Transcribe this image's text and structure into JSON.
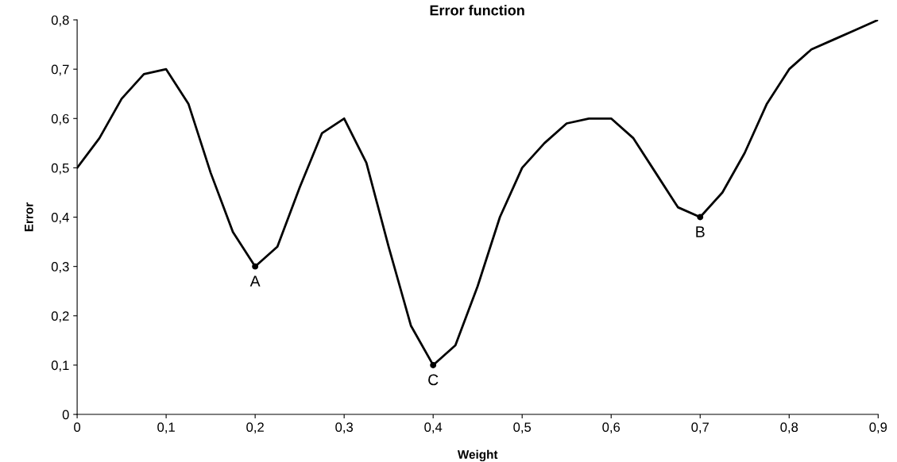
{
  "chart_data": {
    "type": "line",
    "title": "Error function",
    "xlabel": "Weight",
    "ylabel": "Error",
    "x": [
      0,
      0.025,
      0.05,
      0.075,
      0.1,
      0.125,
      0.15,
      0.175,
      0.2,
      0.225,
      0.25,
      0.275,
      0.3,
      0.325,
      0.35,
      0.375,
      0.4,
      0.425,
      0.45,
      0.475,
      0.5,
      0.525,
      0.55,
      0.575,
      0.6,
      0.625,
      0.65,
      0.675,
      0.7,
      0.725,
      0.75,
      0.775,
      0.8,
      0.825,
      0.85,
      0.875,
      0.9
    ],
    "series": [
      {
        "color": "#000000",
        "values": [
          0.5,
          0.56,
          0.64,
          0.69,
          0.7,
          0.63,
          0.49,
          0.37,
          0.3,
          0.34,
          0.46,
          0.57,
          0.6,
          0.51,
          0.34,
          0.18,
          0.1,
          0.14,
          0.26,
          0.4,
          0.5,
          0.55,
          0.59,
          0.6,
          0.6,
          0.56,
          0.49,
          0.42,
          0.4,
          0.45,
          0.53,
          0.63,
          0.7,
          0.74,
          0.76,
          0.78,
          0.8
        ]
      },
      {
        "type": "scatter",
        "color": "#000000",
        "x": [
          0.2,
          0.4,
          0.7
        ],
        "values": [
          0.3,
          0.1,
          0.4
        ],
        "marker": "circle"
      }
    ],
    "annotations": [
      {
        "text": "A",
        "x": 0.2,
        "y": 0.3
      },
      {
        "text": "C",
        "x": 0.4,
        "y": 0.1
      },
      {
        "text": "B",
        "x": 0.7,
        "y": 0.4
      }
    ],
    "xlim": [
      0,
      0.9
    ],
    "xticks": [
      0,
      {
        "value": 0.1,
        "label": "0,1"
      },
      {
        "value": 0.2,
        "label": "0,2"
      },
      {
        "value": 0.3,
        "label": "0,3"
      },
      {
        "value": 0.4,
        "label": "0,4"
      },
      {
        "value": 0.5,
        "label": "0,5"
      },
      {
        "value": 0.6,
        "label": "0,6"
      },
      {
        "value": 0.7,
        "label": "0,7"
      },
      {
        "value": 0.8,
        "label": "0,8"
      },
      {
        "value": 0.9,
        "label": "0,9"
      }
    ],
    "ylim": [
      0,
      0.8
    ],
    "yticks": [
      0,
      {
        "value": 0.1,
        "label": "0,1"
      },
      {
        "value": 0.2,
        "label": "0,2"
      },
      {
        "value": 0.3,
        "label": "0,3"
      },
      {
        "value": 0.4,
        "label": "0,4"
      },
      {
        "value": 0.5,
        "label": "0,5"
      },
      {
        "value": 0.6,
        "label": "0,6"
      },
      {
        "value": 0.7,
        "label": "0,7"
      },
      {
        "value": 0.8,
        "label": "0,8"
      }
    ],
    "grid": false,
    "legend": false
  }
}
